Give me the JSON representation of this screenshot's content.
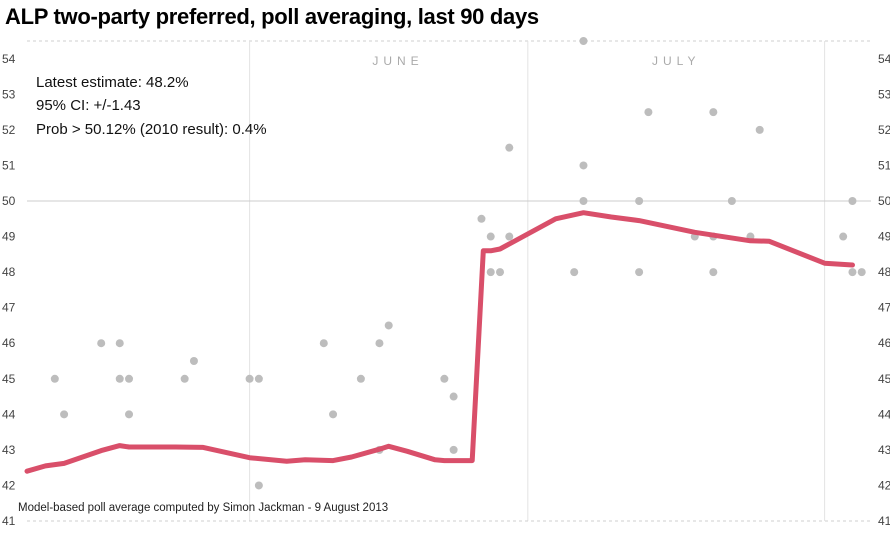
{
  "title": "ALP two-party preferred, poll averaging, last 90 days",
  "annotations": {
    "latest": "Latest estimate: 48.2%",
    "ci": "95% CI: +/-1.43",
    "prob": "Prob > 50.12% (2010 result): 0.4%"
  },
  "credit": "Model-based poll average computed by Simon Jackman - 9 August 2013",
  "colors": {
    "line": "#d94f6a",
    "points": "#bdbdbd",
    "grid": "#e3e3e3",
    "ref": "#cccccc"
  },
  "chart_data": {
    "type": "line",
    "title": "ALP two-party preferred, poll averaging, last 90 days",
    "xlabel": "",
    "ylabel": "",
    "x_unit": "days",
    "xlim": [
      0,
      91
    ],
    "ylim": [
      41,
      54.5
    ],
    "yticks": [
      41,
      42,
      43,
      44,
      45,
      46,
      47,
      48,
      49,
      50,
      51,
      52,
      53,
      54
    ],
    "x_month_lines": [
      24,
      54,
      86
    ],
    "month_labels": [
      {
        "label": "JUNE",
        "x": 40
      },
      {
        "label": "JULY",
        "x": 70
      }
    ],
    "reference_line": 50,
    "grid": true,
    "series": [
      {
        "kind": "line",
        "points": [
          [
            0,
            42.4
          ],
          [
            2,
            42.55
          ],
          [
            4,
            42.62
          ],
          [
            8,
            42.98
          ],
          [
            10,
            43.12
          ],
          [
            11,
            43.08
          ],
          [
            13,
            43.08
          ],
          [
            16,
            43.08
          ],
          [
            19,
            43.07
          ],
          [
            24,
            42.78
          ],
          [
            28,
            42.68
          ],
          [
            30,
            42.72
          ],
          [
            33,
            42.7
          ],
          [
            35,
            42.8
          ],
          [
            38,
            43.02
          ],
          [
            39,
            43.1
          ],
          [
            41,
            42.96
          ],
          [
            44,
            42.72
          ],
          [
            45,
            42.7
          ],
          [
            48,
            42.7
          ],
          [
            49.2,
            48.6
          ],
          [
            50,
            48.6
          ],
          [
            51,
            48.65
          ],
          [
            57,
            49.5
          ],
          [
            60,
            49.67
          ],
          [
            63,
            49.55
          ],
          [
            66,
            49.45
          ],
          [
            72,
            49.12
          ],
          [
            78,
            48.88
          ],
          [
            80,
            48.87
          ],
          [
            86,
            48.25
          ],
          [
            89,
            48.2
          ]
        ]
      },
      {
        "kind": "scatter",
        "points": [
          [
            3,
            45
          ],
          [
            4,
            44
          ],
          [
            8,
            46
          ],
          [
            10,
            46
          ],
          [
            10,
            45
          ],
          [
            11,
            45
          ],
          [
            11,
            44
          ],
          [
            17,
            45
          ],
          [
            18,
            45.5
          ],
          [
            24,
            45
          ],
          [
            25,
            45
          ],
          [
            25,
            42
          ],
          [
            32,
            46
          ],
          [
            33,
            44
          ],
          [
            36,
            45
          ],
          [
            38,
            43
          ],
          [
            38,
            46
          ],
          [
            39,
            46.5
          ],
          [
            45,
            45
          ],
          [
            46,
            44.5
          ],
          [
            46,
            43
          ],
          [
            49,
            49.5
          ],
          [
            50,
            49
          ],
          [
            50,
            48
          ],
          [
            51,
            48
          ],
          [
            52,
            51.5
          ],
          [
            52,
            49
          ],
          [
            59,
            48
          ],
          [
            60,
            54.5
          ],
          [
            60,
            51
          ],
          [
            60,
            50
          ],
          [
            66,
            50
          ],
          [
            66,
            48
          ],
          [
            67,
            52.5
          ],
          [
            72,
            49
          ],
          [
            74,
            49
          ],
          [
            74,
            52.5
          ],
          [
            74,
            48
          ],
          [
            76,
            50
          ],
          [
            78,
            49
          ],
          [
            79,
            52
          ],
          [
            88,
            49
          ],
          [
            89,
            50
          ],
          [
            89,
            48
          ],
          [
            90,
            48
          ]
        ]
      }
    ]
  }
}
